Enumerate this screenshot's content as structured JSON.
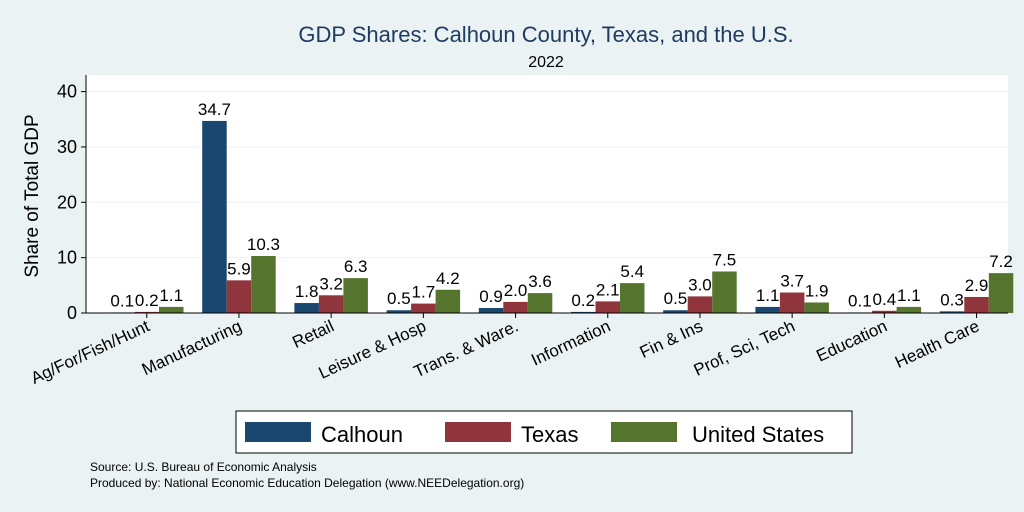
{
  "chart_data": {
    "type": "bar",
    "title": "GDP Shares: Calhoun County, Texas, and the U.S.",
    "subtitle": "2022",
    "ylabel": "Share of Total GDP",
    "ylim": [
      0,
      43
    ],
    "yticks": [
      0,
      10,
      20,
      30,
      40
    ],
    "grid": true,
    "legend_position": "bottom",
    "categories": [
      "Ag/For/Fish/Hunt",
      "Manufacturing",
      "Retail",
      "Leisure & Hosp",
      "Trans. & Ware.",
      "Information",
      "Fin & Ins",
      "Prof, Sci, Tech",
      "Education",
      "Health Care"
    ],
    "series": [
      {
        "name": "Calhoun",
        "color": "#1a476f",
        "values": [
          0.1,
          34.7,
          1.8,
          0.5,
          0.9,
          0.2,
          0.5,
          1.1,
          0.1,
          0.3
        ],
        "labels": [
          "0.1",
          "34.7",
          "1.8",
          "0.5",
          "0.9",
          "0.2",
          "0.5",
          "1.1",
          "0.1",
          "0.3"
        ]
      },
      {
        "name": "Texas",
        "color": "#90353b",
        "values": [
          0.2,
          5.9,
          3.2,
          1.7,
          2.0,
          2.1,
          3.0,
          3.7,
          0.4,
          2.9
        ],
        "labels": [
          "0.2",
          "5.9",
          "3.2",
          "1.7",
          "2.0",
          "2.1",
          "3.0",
          "3.7",
          "0.4",
          "2.9"
        ]
      },
      {
        "name": "United States",
        "color": "#55752f",
        "values": [
          1.1,
          10.3,
          6.3,
          4.2,
          3.6,
          5.4,
          7.5,
          1.9,
          1.1,
          7.2
        ],
        "labels": [
          "1.1",
          "10.3",
          "6.3",
          "4.2",
          "3.6",
          "5.4",
          "7.5",
          "1.9",
          "1.1",
          "7.2"
        ]
      }
    ],
    "source_lines": [
      "Source: U.S. Bureau of Economic Analysis",
      "Produced by: National Economic Education Delegation (www.NEEDelegation.org)"
    ]
  }
}
